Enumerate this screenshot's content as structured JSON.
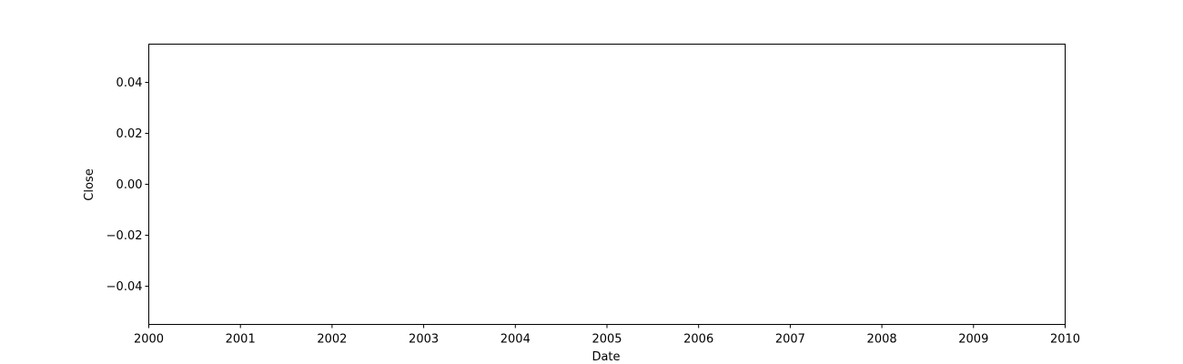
{
  "chart_data": {
    "type": "line",
    "title": "",
    "xlabel": "Date",
    "ylabel": "Close",
    "x_ticks": [
      "2000",
      "2001",
      "2002",
      "2003",
      "2004",
      "2005",
      "2006",
      "2007",
      "2008",
      "2009",
      "2010"
    ],
    "y_ticks": [
      "0.04",
      "0.02",
      "0.00",
      "−0.02",
      "−0.04"
    ],
    "y_tick_values": [
      0.04,
      0.02,
      0.0,
      -0.02,
      -0.04
    ],
    "xlim": [
      2000,
      2010
    ],
    "ylim": [
      -0.055,
      0.055
    ],
    "series": [
      {
        "name": "Close",
        "x": [],
        "y": []
      }
    ],
    "grid": false,
    "legend": false
  }
}
